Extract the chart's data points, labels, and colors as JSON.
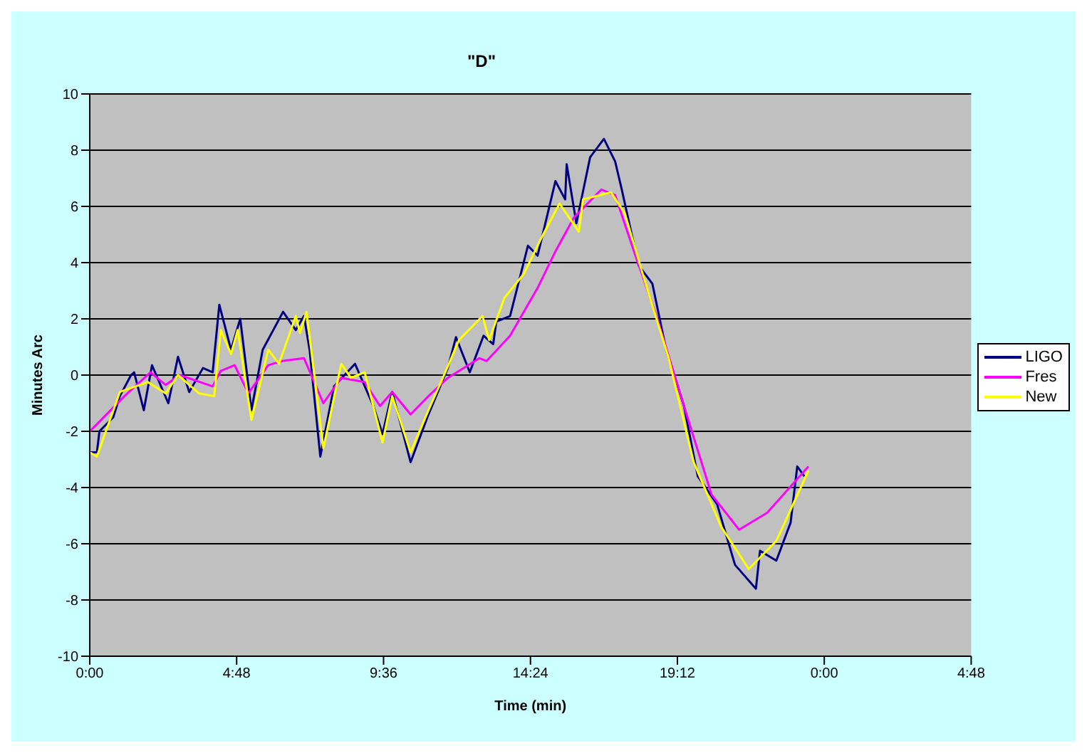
{
  "chart_data": {
    "type": "line",
    "title": "\"D\"",
    "xlabel": "Time (min)",
    "ylabel": "Minutes Arc",
    "xlim": [
      "2000-01-01T00:00",
      "2000-01-02T04:48"
    ],
    "xticks": [
      {
        "value": "2000-01-01T00:00",
        "label": "0:00"
      },
      {
        "value": "2000-01-01T04:48",
        "label": "4:48"
      },
      {
        "value": "2000-01-01T09:36",
        "label": "9:36"
      },
      {
        "value": "2000-01-01T14:24",
        "label": "14:24"
      },
      {
        "value": "2000-01-01T19:12",
        "label": "19:12"
      },
      {
        "value": "2000-01-02T00:00",
        "label": "0:00"
      },
      {
        "value": "2000-01-02T04:48",
        "label": "4:48"
      }
    ],
    "ylim": [
      -10,
      10
    ],
    "yticks": [
      -10,
      -8,
      -6,
      -4,
      -2,
      0,
      2,
      4,
      6,
      8,
      10
    ],
    "grid": "y",
    "legend": "right",
    "marker": "none",
    "line_style": "solid",
    "series": [
      {
        "name": "LIGO",
        "color": "#000080",
        "x": [
          "2000-01-01T00:00",
          "2000-01-01T00:14",
          "2000-01-01T00:19",
          "2000-01-01T00:46",
          "2000-01-01T00:59",
          "2000-01-01T01:21",
          "2000-01-01T01:27",
          "2000-01-01T01:46",
          "2000-01-01T02:02",
          "2000-01-01T02:34",
          "2000-01-01T02:53",
          "2000-01-01T03:15",
          "2000-01-01T03:42",
          "2000-01-01T04:01",
          "2000-01-01T04:14",
          "2000-01-01T04:37",
          "2000-01-01T04:55",
          "2000-01-01T05:17",
          "2000-01-01T05:39",
          "2000-01-01T06:19",
          "2000-01-01T06:44",
          "2000-01-01T07:00",
          "2000-01-01T07:11",
          "2000-01-01T07:32",
          "2000-01-01T07:59",
          "2000-01-01T08:40",
          "2000-01-01T09:16",
          "2000-01-01T09:34",
          "2000-01-01T09:53",
          "2000-01-01T10:29",
          "2000-01-01T11:04",
          "2000-01-01T11:42",
          "2000-01-01T11:58",
          "2000-01-01T12:25",
          "2000-01-01T12:52",
          "2000-01-01T13:11",
          "2000-01-01T13:17",
          "2000-01-01T13:44",
          "2000-01-01T14:19",
          "2000-01-01T14:38",
          "2000-01-01T15:13",
          "2000-01-01T15:32",
          "2000-01-01T15:35",
          "2000-01-01T15:54",
          "2000-01-01T16:21",
          "2000-01-01T16:48",
          "2000-01-01T17:10",
          "2000-01-01T17:23",
          "2000-01-01T17:56",
          "2000-01-01T18:23",
          "2000-01-01T18:50",
          "2000-01-01T19:25",
          "2000-01-01T19:52",
          "2000-01-01T20:30",
          "2000-01-01T21:05",
          "2000-01-01T21:46",
          "2000-01-01T21:54",
          "2000-01-01T22:26",
          "2000-01-01T22:54",
          "2000-01-01T23:07",
          "2000-01-01T23:21"
        ],
        "values": [
          -2.75,
          -2.75,
          -2,
          -1.5,
          -0.75,
          0,
          0.1,
          -1.25,
          0.35,
          -1,
          0.65,
          -0.6,
          0.25,
          0.1,
          2.5,
          0.9,
          2,
          -1.25,
          0.9,
          2.25,
          1.6,
          2.1,
          0.9,
          -2.9,
          -0.4,
          0.4,
          -1.1,
          -2.1,
          -0.6,
          -3.1,
          -1.4,
          0.25,
          1.35,
          0.1,
          1.4,
          1.1,
          1.9,
          2.1,
          4.6,
          4.25,
          6.9,
          6.25,
          7.5,
          5.4,
          7.75,
          8.4,
          7.6,
          6.6,
          3.9,
          3.25,
          0.9,
          -1.1,
          -3.6,
          -4.6,
          -6.75,
          -7.6,
          -6.25,
          -6.6,
          -5.25,
          -3.25,
          -3.6
        ]
      },
      {
        "name": "Fres",
        "color": "#ff00ff",
        "x": [
          "2000-01-01T00:00",
          "2000-01-01T00:14",
          "2000-01-01T01:08",
          "2000-01-01T01:59",
          "2000-01-01T02:29",
          "2000-01-01T02:56",
          "2000-01-01T04:01",
          "2000-01-01T04:17",
          "2000-01-01T04:44",
          "2000-01-01T05:11",
          "2000-01-01T05:50",
          "2000-01-01T06:17",
          "2000-01-01T07:00",
          "2000-01-01T07:38",
          "2000-01-01T08:13",
          "2000-01-01T08:59",
          "2000-01-01T09:29",
          "2000-01-01T09:53",
          "2000-01-01T10:29",
          "2000-01-01T11:04",
          "2000-01-01T11:42",
          "2000-01-01T12:44",
          "2000-01-01T12:58",
          "2000-01-01T13:44",
          "2000-01-01T14:38",
          "2000-01-01T15:13",
          "2000-01-01T15:49",
          "2000-01-01T16:43",
          "2000-01-01T17:10",
          "2000-01-01T17:47",
          "2000-01-01T18:31",
          "2000-01-01T19:25",
          "2000-01-01T20:19",
          "2000-01-01T21:13",
          "2000-01-01T22:08",
          "2000-01-01T23:29"
        ],
        "values": [
          -2,
          -1.75,
          -0.75,
          0.1,
          -0.35,
          0,
          -0.4,
          0.15,
          0.35,
          -0.65,
          0.35,
          0.5,
          0.6,
          -1,
          -0.1,
          -0.25,
          -1.1,
          -0.6,
          -1.4,
          -0.75,
          -0.1,
          0.6,
          0.5,
          1.4,
          3.1,
          4.4,
          5.6,
          6.6,
          6.4,
          4.4,
          2.1,
          -1.1,
          -4.25,
          -5.5,
          -4.9,
          -3.25
        ]
      },
      {
        "name": "New",
        "color": "#ffff00",
        "x": [
          "2000-01-01T00:00",
          "2000-01-01T00:14",
          "2000-01-01T00:59",
          "2000-01-01T01:54",
          "2000-01-01T02:29",
          "2000-01-01T02:53",
          "2000-01-01T03:34",
          "2000-01-01T04:04",
          "2000-01-01T04:17",
          "2000-01-01T04:37",
          "2000-01-01T04:50",
          "2000-01-01T05:17",
          "2000-01-01T05:50",
          "2000-01-01T06:11",
          "2000-01-01T06:44",
          "2000-01-01T06:52",
          "2000-01-01T07:05",
          "2000-01-01T07:38",
          "2000-01-01T08:13",
          "2000-01-01T08:32",
          "2000-01-01T08:59",
          "2000-01-01T09:34",
          "2000-01-01T09:53",
          "2000-01-01T10:29",
          "2000-01-01T11:04",
          "2000-01-01T11:37",
          "2000-01-01T12:04",
          "2000-01-01T12:50",
          "2000-01-01T13:03",
          "2000-01-01T13:33",
          "2000-01-01T14:11",
          "2000-01-01T14:46",
          "2000-01-01T15:21",
          "2000-01-01T15:59",
          "2000-01-01T16:07",
          "2000-01-01T17:02",
          "2000-01-01T17:29",
          "2000-01-01T18:04",
          "2000-01-01T18:55",
          "2000-01-01T19:44",
          "2000-01-01T20:38",
          "2000-01-01T21:32",
          "2000-01-01T22:26",
          "2000-01-01T23:29"
        ],
        "values": [
          -2.75,
          -2.9,
          -0.6,
          -0.25,
          -0.65,
          0,
          -0.65,
          -0.75,
          1.6,
          0.75,
          1.6,
          -1.6,
          0.9,
          0.4,
          2.1,
          1.5,
          2.25,
          -2.6,
          0.4,
          -0.1,
          0.1,
          -2.4,
          -0.75,
          -2.75,
          -1.25,
          0.1,
          1.25,
          2.1,
          1.25,
          2.75,
          3.6,
          4.9,
          6.1,
          5.1,
          6.25,
          6.5,
          5.75,
          3.6,
          0.6,
          -3.1,
          -5.4,
          -6.9,
          -5.9,
          -3.4
        ]
      }
    ]
  }
}
